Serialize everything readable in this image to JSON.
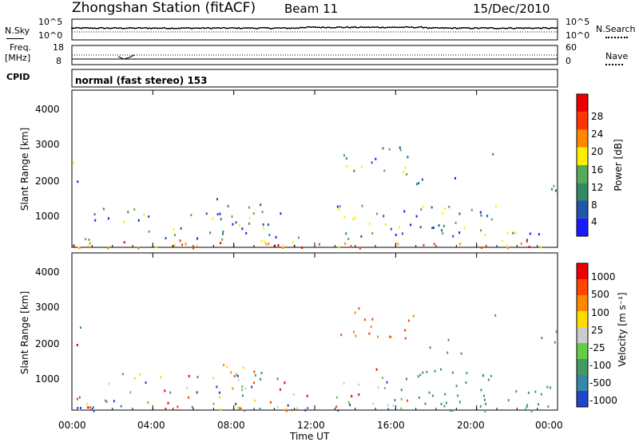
{
  "header": {
    "station": "Zhongshan Station (fitACF)",
    "beam": "Beam 11",
    "date": "15/Dec/2010"
  },
  "noise_panel": {
    "left_label": "N.Sky",
    "right_label": "N.Search",
    "left_ticks": [
      "10^5",
      "10^0"
    ],
    "right_ticks": [
      "10^5",
      "10^0"
    ]
  },
  "freq_panel": {
    "left_label_line1": "Freq.",
    "left_label_line2": "[MHz]",
    "right_label": "Nave",
    "left_ticks": [
      "18",
      "8"
    ],
    "right_ticks": [
      "60",
      "0"
    ]
  },
  "cpid": {
    "label": "CPID",
    "program": "normal (fast stereo) 153"
  },
  "power_panel": {
    "ylabel": "Slant Range [km]",
    "yticks": [
      "4000",
      "3000",
      "2000",
      "1000"
    ],
    "colorbar_label": "Power [dB]",
    "colorbar_ticks": [
      "28",
      "24",
      "20",
      "16",
      "12",
      "8",
      "4"
    ],
    "colors": [
      "#1a1aff",
      "#2255aa",
      "#338866",
      "#55aa55",
      "#ffee00",
      "#ff8800",
      "#ff3300",
      "#ee0000"
    ]
  },
  "velocity_panel": {
    "ylabel": "Slant Range [km]",
    "yticks": [
      "4000",
      "3000",
      "2000",
      "1000"
    ],
    "colorbar_label": "Velocity [m s⁻¹]",
    "colorbar_ticks": [
      "1000",
      "500",
      "100",
      "25",
      "-25",
      "-100",
      "-500",
      "-1000"
    ],
    "colors": [
      "#2244cc",
      "#3388aa",
      "#449966",
      "#66cc44",
      "#cccccc",
      "#ffdd00",
      "#ff8800",
      "#ff4400",
      "#ee0000"
    ]
  },
  "chart_data": [
    {
      "type": "heatmap",
      "title": "Power",
      "xlabel": "Time UT",
      "ylabel": "Slant Range [km]",
      "x_range": [
        "00:00",
        "24:00"
      ],
      "ylim": [
        180,
        4600
      ],
      "xticks": [
        "00:00",
        "04:00",
        "08:00",
        "12:00",
        "16:00",
        "20:00",
        "00:00"
      ],
      "colorbar": {
        "label": "Power [dB]",
        "ticks": [
          4,
          8,
          12,
          16,
          20,
          24,
          28
        ]
      }
    },
    {
      "type": "heatmap",
      "title": "Velocity",
      "xlabel": "Time UT",
      "ylabel": "Slant Range [km]",
      "x_range": [
        "00:00",
        "24:00"
      ],
      "ylim": [
        180,
        4600
      ],
      "xticks": [
        "00:00",
        "04:00",
        "08:00",
        "12:00",
        "16:00",
        "20:00",
        "00:00"
      ],
      "colorbar": {
        "label": "Velocity [m s⁻¹]",
        "ticks": [
          1000,
          500,
          100,
          25,
          -25,
          -100,
          -500,
          -1000
        ]
      }
    }
  ],
  "xaxis": {
    "label": "Time UT",
    "ticks": [
      "00:00",
      "04:00",
      "08:00",
      "12:00",
      "16:00",
      "20:00",
      "00:00"
    ]
  }
}
